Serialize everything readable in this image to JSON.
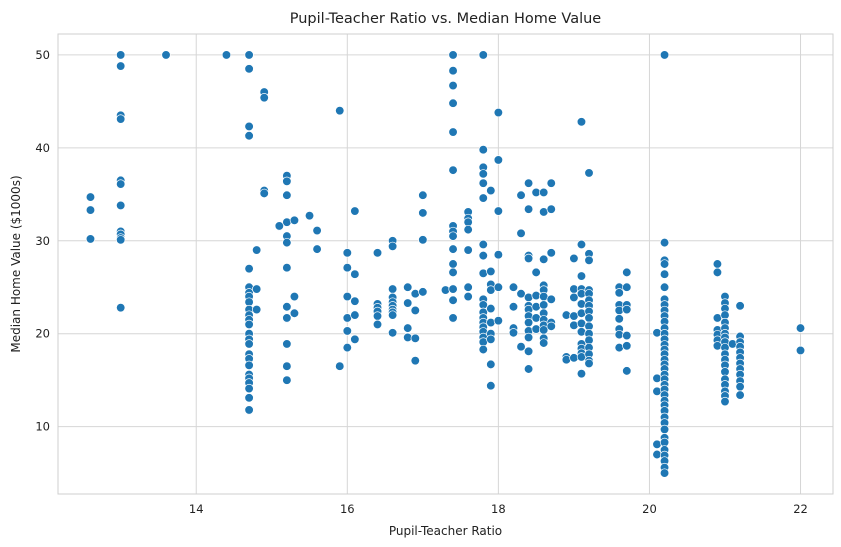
{
  "chart_data": {
    "type": "scatter",
    "title": "Pupil-Teacher Ratio vs. Median Home Value",
    "xlabel": "Pupil-Teacher Ratio",
    "ylabel": "Median Home Value ($1000s)",
    "xlim": [
      12.17,
      22.43
    ],
    "ylim": [
      2.75,
      52.25
    ],
    "xticks": [
      14,
      16,
      18,
      20,
      22
    ],
    "yticks": [
      10,
      20,
      30,
      40,
      50
    ],
    "grid": true,
    "color": "#1f77b4",
    "points": [
      [
        12.6,
        34.7
      ],
      [
        12.6,
        33.3
      ],
      [
        12.6,
        30.2
      ],
      [
        13.0,
        50.0
      ],
      [
        13.0,
        48.8
      ],
      [
        13.0,
        43.5
      ],
      [
        13.0,
        43.1
      ],
      [
        13.0,
        36.5
      ],
      [
        13.0,
        36.1
      ],
      [
        13.0,
        33.8
      ],
      [
        13.0,
        31.0
      ],
      [
        13.0,
        30.7
      ],
      [
        13.0,
        30.3
      ],
      [
        13.0,
        30.1
      ],
      [
        13.0,
        22.8
      ],
      [
        13.6,
        50.0
      ],
      [
        14.4,
        50.0
      ],
      [
        14.7,
        50.0
      ],
      [
        14.7,
        48.5
      ],
      [
        14.7,
        42.3
      ],
      [
        14.7,
        41.3
      ],
      [
        14.7,
        27.0
      ],
      [
        14.7,
        25.0
      ],
      [
        14.7,
        24.4
      ],
      [
        14.7,
        24.0
      ],
      [
        14.7,
        23.4
      ],
      [
        14.7,
        22.6
      ],
      [
        14.7,
        22.0
      ],
      [
        14.7,
        21.5
      ],
      [
        14.7,
        21.0
      ],
      [
        14.7,
        20.0
      ],
      [
        14.7,
        19.4
      ],
      [
        14.7,
        18.9
      ],
      [
        14.7,
        17.8
      ],
      [
        14.7,
        17.3
      ],
      [
        14.7,
        16.6
      ],
      [
        14.7,
        15.6
      ],
      [
        14.7,
        15.2
      ],
      [
        14.7,
        14.7
      ],
      [
        14.7,
        14.1
      ],
      [
        14.7,
        13.1
      ],
      [
        14.7,
        11.8
      ],
      [
        14.8,
        29.0
      ],
      [
        14.8,
        24.8
      ],
      [
        14.8,
        22.6
      ],
      [
        14.9,
        46.0
      ],
      [
        14.9,
        45.4
      ],
      [
        14.9,
        35.4
      ],
      [
        14.9,
        35.1
      ],
      [
        15.1,
        31.6
      ],
      [
        15.2,
        37.0
      ],
      [
        15.2,
        36.4
      ],
      [
        15.2,
        34.9
      ],
      [
        15.2,
        32.0
      ],
      [
        15.2,
        30.5
      ],
      [
        15.2,
        29.8
      ],
      [
        15.2,
        27.1
      ],
      [
        15.2,
        22.9
      ],
      [
        15.2,
        21.7
      ],
      [
        15.2,
        18.9
      ],
      [
        15.2,
        16.5
      ],
      [
        15.2,
        15.0
      ],
      [
        15.3,
        32.2
      ],
      [
        15.3,
        24.0
      ],
      [
        15.3,
        22.2
      ],
      [
        15.5,
        32.7
      ],
      [
        15.6,
        31.1
      ],
      [
        15.6,
        29.1
      ],
      [
        15.9,
        44.0
      ],
      [
        15.9,
        16.5
      ],
      [
        16.0,
        28.7
      ],
      [
        16.0,
        27.1
      ],
      [
        16.0,
        24.0
      ],
      [
        16.0,
        21.7
      ],
      [
        16.0,
        20.3
      ],
      [
        16.0,
        18.5
      ],
      [
        16.1,
        33.2
      ],
      [
        16.1,
        26.4
      ],
      [
        16.1,
        23.5
      ],
      [
        16.1,
        22.0
      ],
      [
        16.1,
        19.4
      ],
      [
        16.4,
        28.7
      ],
      [
        16.4,
        23.2
      ],
      [
        16.4,
        22.8
      ],
      [
        16.4,
        22.4
      ],
      [
        16.4,
        21.9
      ],
      [
        16.4,
        21.0
      ],
      [
        16.6,
        30.0
      ],
      [
        16.6,
        29.4
      ],
      [
        16.6,
        24.8
      ],
      [
        16.6,
        23.9
      ],
      [
        16.6,
        23.4
      ],
      [
        16.6,
        23.0
      ],
      [
        16.6,
        22.6
      ],
      [
        16.6,
        22.3
      ],
      [
        16.6,
        22.0
      ],
      [
        16.6,
        20.1
      ],
      [
        16.8,
        25.0
      ],
      [
        16.8,
        23.3
      ],
      [
        16.8,
        20.6
      ],
      [
        16.8,
        19.6
      ],
      [
        16.9,
        24.3
      ],
      [
        16.9,
        22.5
      ],
      [
        16.9,
        19.5
      ],
      [
        16.9,
        17.1
      ],
      [
        17.0,
        34.9
      ],
      [
        17.0,
        33.0
      ],
      [
        17.0,
        30.1
      ],
      [
        17.0,
        24.5
      ],
      [
        17.3,
        24.7
      ],
      [
        17.4,
        50.0
      ],
      [
        17.4,
        48.3
      ],
      [
        17.4,
        46.7
      ],
      [
        17.4,
        44.8
      ],
      [
        17.4,
        41.7
      ],
      [
        17.4,
        37.6
      ],
      [
        17.4,
        31.6
      ],
      [
        17.4,
        31.0
      ],
      [
        17.4,
        30.5
      ],
      [
        17.4,
        29.1
      ],
      [
        17.4,
        27.5
      ],
      [
        17.4,
        26.6
      ],
      [
        17.4,
        24.8
      ],
      [
        17.4,
        23.6
      ],
      [
        17.4,
        21.7
      ],
      [
        17.6,
        33.1
      ],
      [
        17.6,
        32.4
      ],
      [
        17.6,
        32.0
      ],
      [
        17.6,
        31.2
      ],
      [
        17.6,
        29.0
      ],
      [
        17.6,
        25.0
      ],
      [
        17.6,
        24.0
      ],
      [
        17.8,
        50.0
      ],
      [
        17.8,
        39.8
      ],
      [
        17.8,
        37.9
      ],
      [
        17.8,
        37.2
      ],
      [
        17.8,
        36.2
      ],
      [
        17.8,
        34.6
      ],
      [
        17.8,
        29.6
      ],
      [
        17.8,
        28.4
      ],
      [
        17.8,
        26.5
      ],
      [
        17.8,
        23.7
      ],
      [
        17.8,
        23.1
      ],
      [
        17.8,
        22.3
      ],
      [
        17.8,
        21.7
      ],
      [
        17.8,
        21.2
      ],
      [
        17.8,
        20.7
      ],
      [
        17.8,
        20.2
      ],
      [
        17.8,
        19.6
      ],
      [
        17.8,
        19.1
      ],
      [
        17.8,
        18.3
      ],
      [
        17.9,
        35.4
      ],
      [
        17.9,
        26.7
      ],
      [
        17.9,
        25.3
      ],
      [
        17.9,
        24.7
      ],
      [
        17.9,
        22.7
      ],
      [
        17.9,
        21.2
      ],
      [
        17.9,
        20.0
      ],
      [
        17.9,
        19.4
      ],
      [
        17.9,
        16.7
      ],
      [
        17.9,
        14.4
      ],
      [
        18.0,
        43.8
      ],
      [
        18.0,
        38.7
      ],
      [
        18.0,
        33.2
      ],
      [
        18.0,
        28.5
      ],
      [
        18.0,
        25.0
      ],
      [
        18.0,
        21.4
      ],
      [
        18.2,
        25.0
      ],
      [
        18.2,
        22.9
      ],
      [
        18.2,
        20.6
      ],
      [
        18.2,
        20.1
      ],
      [
        18.3,
        34.9
      ],
      [
        18.3,
        30.8
      ],
      [
        18.3,
        24.3
      ],
      [
        18.3,
        18.6
      ],
      [
        18.4,
        36.2
      ],
      [
        18.4,
        33.4
      ],
      [
        18.4,
        28.4
      ],
      [
        18.4,
        28.1
      ],
      [
        18.4,
        23.9
      ],
      [
        18.4,
        23.0
      ],
      [
        18.4,
        22.6
      ],
      [
        18.4,
        21.9
      ],
      [
        18.4,
        21.2
      ],
      [
        18.4,
        20.3
      ],
      [
        18.4,
        19.6
      ],
      [
        18.4,
        18.1
      ],
      [
        18.4,
        16.2
      ],
      [
        18.5,
        35.2
      ],
      [
        18.5,
        26.6
      ],
      [
        18.5,
        24.1
      ],
      [
        18.5,
        22.9
      ],
      [
        18.5,
        21.7
      ],
      [
        18.5,
        20.5
      ],
      [
        18.6,
        33.1
      ],
      [
        18.6,
        35.2
      ],
      [
        18.6,
        28.0
      ],
      [
        18.6,
        25.2
      ],
      [
        18.6,
        24.7
      ],
      [
        18.6,
        24.0
      ],
      [
        18.6,
        23.1
      ],
      [
        18.6,
        22.2
      ],
      [
        18.6,
        21.5
      ],
      [
        18.6,
        20.9
      ],
      [
        18.6,
        20.4
      ],
      [
        18.6,
        19.5
      ],
      [
        18.6,
        19.0
      ],
      [
        18.7,
        36.2
      ],
      [
        18.7,
        33.4
      ],
      [
        18.7,
        28.7
      ],
      [
        18.7,
        23.7
      ],
      [
        18.7,
        21.2
      ],
      [
        18.7,
        20.8
      ],
      [
        18.9,
        22.0
      ],
      [
        18.9,
        17.5
      ],
      [
        18.9,
        17.2
      ],
      [
        19.0,
        28.1
      ],
      [
        19.0,
        24.8
      ],
      [
        19.0,
        23.9
      ],
      [
        19.0,
        21.9
      ],
      [
        19.0,
        20.9
      ],
      [
        19.0,
        17.4
      ],
      [
        19.1,
        42.8
      ],
      [
        19.1,
        29.6
      ],
      [
        19.1,
        26.2
      ],
      [
        19.1,
        24.8
      ],
      [
        19.1,
        24.3
      ],
      [
        19.1,
        23.2
      ],
      [
        19.1,
        22.2
      ],
      [
        19.1,
        21.1
      ],
      [
        19.1,
        20.2
      ],
      [
        19.1,
        18.9
      ],
      [
        19.1,
        18.4
      ],
      [
        19.1,
        17.9
      ],
      [
        19.1,
        17.5
      ],
      [
        19.1,
        15.7
      ],
      [
        19.2,
        37.3
      ],
      [
        19.2,
        28.6
      ],
      [
        19.2,
        27.9
      ],
      [
        19.2,
        24.7
      ],
      [
        19.2,
        24.3
      ],
      [
        19.2,
        23.6
      ],
      [
        19.2,
        23.0
      ],
      [
        19.2,
        22.4
      ],
      [
        19.2,
        21.7
      ],
      [
        19.2,
        20.8
      ],
      [
        19.2,
        20.0
      ],
      [
        19.2,
        19.3
      ],
      [
        19.2,
        18.5
      ],
      [
        19.2,
        17.8
      ],
      [
        19.2,
        17.1
      ],
      [
        19.2,
        16.8
      ],
      [
        19.6,
        25.0
      ],
      [
        19.6,
        24.4
      ],
      [
        19.6,
        23.1
      ],
      [
        19.6,
        22.5
      ],
      [
        19.6,
        21.6
      ],
      [
        19.6,
        20.5
      ],
      [
        19.6,
        19.9
      ],
      [
        19.6,
        18.5
      ],
      [
        19.7,
        26.6
      ],
      [
        19.7,
        25.0
      ],
      [
        19.7,
        23.1
      ],
      [
        19.7,
        22.6
      ],
      [
        19.7,
        19.8
      ],
      [
        19.7,
        18.7
      ],
      [
        19.7,
        16.0
      ],
      [
        20.1,
        20.1
      ],
      [
        20.1,
        15.2
      ],
      [
        20.1,
        13.8
      ],
      [
        20.1,
        8.1
      ],
      [
        20.1,
        7.0
      ],
      [
        20.2,
        50.0
      ],
      [
        20.2,
        29.8
      ],
      [
        20.2,
        27.9
      ],
      [
        20.2,
        27.5
      ],
      [
        20.2,
        26.4
      ],
      [
        20.2,
        25.0
      ],
      [
        20.2,
        23.7
      ],
      [
        20.2,
        23.1
      ],
      [
        20.2,
        22.5
      ],
      [
        20.2,
        21.9
      ],
      [
        20.2,
        21.3
      ],
      [
        20.2,
        20.6
      ],
      [
        20.2,
        20.0
      ],
      [
        20.2,
        19.4
      ],
      [
        20.2,
        18.8
      ],
      [
        20.2,
        18.3
      ],
      [
        20.2,
        17.8
      ],
      [
        20.2,
        17.2
      ],
      [
        20.2,
        16.7
      ],
      [
        20.2,
        16.2
      ],
      [
        20.2,
        15.6
      ],
      [
        20.2,
        15.1
      ],
      [
        20.2,
        14.5
      ],
      [
        20.2,
        14.0
      ],
      [
        20.2,
        13.4
      ],
      [
        20.2,
        12.8
      ],
      [
        20.2,
        12.3
      ],
      [
        20.2,
        11.7
      ],
      [
        20.2,
        11.0
      ],
      [
        20.2,
        10.4
      ],
      [
        20.2,
        9.7
      ],
      [
        20.2,
        8.8
      ],
      [
        20.2,
        8.3
      ],
      [
        20.2,
        7.5
      ],
      [
        20.2,
        6.9
      ],
      [
        20.2,
        6.3
      ],
      [
        20.2,
        5.6
      ],
      [
        20.2,
        5.0
      ],
      [
        20.9,
        27.5
      ],
      [
        20.9,
        26.6
      ],
      [
        20.9,
        21.7
      ],
      [
        20.9,
        20.4
      ],
      [
        20.9,
        19.9
      ],
      [
        20.9,
        19.3
      ],
      [
        20.9,
        18.7
      ],
      [
        21.0,
        24.0
      ],
      [
        21.0,
        23.3
      ],
      [
        21.0,
        22.7
      ],
      [
        21.0,
        22.0
      ],
      [
        21.0,
        21.2
      ],
      [
        21.0,
        20.6
      ],
      [
        21.0,
        20.0
      ],
      [
        21.0,
        19.6
      ],
      [
        21.0,
        19.1
      ],
      [
        21.0,
        18.5
      ],
      [
        21.0,
        17.8
      ],
      [
        21.0,
        17.2
      ],
      [
        21.0,
        16.6
      ],
      [
        21.0,
        15.9
      ],
      [
        21.0,
        15.1
      ],
      [
        21.0,
        14.5
      ],
      [
        21.0,
        13.8
      ],
      [
        21.0,
        13.3
      ],
      [
        21.0,
        12.7
      ],
      [
        21.1,
        18.9
      ],
      [
        21.2,
        23.0
      ],
      [
        21.2,
        19.7
      ],
      [
        21.2,
        19.1
      ],
      [
        21.2,
        18.6
      ],
      [
        21.2,
        18.0
      ],
      [
        21.2,
        17.4
      ],
      [
        21.2,
        16.8
      ],
      [
        21.2,
        16.2
      ],
      [
        21.2,
        15.6
      ],
      [
        21.2,
        14.9
      ],
      [
        21.2,
        14.3
      ],
      [
        21.2,
        13.4
      ],
      [
        22.0,
        20.6
      ],
      [
        22.0,
        18.2
      ]
    ]
  }
}
